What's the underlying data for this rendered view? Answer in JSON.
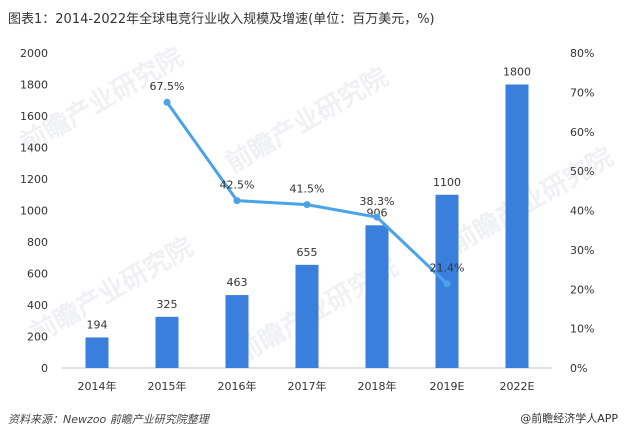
{
  "title": "图表1：2014-2022年全球电竞行业收入规模及增速(单位：百万美元，%)",
  "source": "资料来源：Newzoo 前瞻产业研究院整理",
  "watermark_brand": "@前瞻经济学人APP",
  "watermark_text": "前瞻产业研究院",
  "chart_data": {
    "type": "bar",
    "categories": [
      "2014年",
      "2015年",
      "2016年",
      "2017年",
      "2018年",
      "2019E",
      "2022E"
    ],
    "series": [
      {
        "type": "bar",
        "values": [
          194,
          325,
          463,
          655,
          906,
          1100,
          1800
        ],
        "labels": [
          "194",
          "325",
          "463",
          "655",
          "906",
          "1100",
          "1800"
        ],
        "color": "#3b7fdd",
        "axis": "left"
      },
      {
        "type": "line",
        "values": [
          null,
          67.5,
          42.5,
          41.5,
          38.3,
          21.4,
          null
        ],
        "labels": [
          "",
          "67.5%",
          "42.5%",
          "41.5%",
          "38.3%",
          "21.4%",
          ""
        ],
        "color": "#4aa3e8",
        "axis": "right"
      }
    ],
    "ylim_left": [
      0,
      2000
    ],
    "yticks_left": [
      "0",
      "200",
      "400",
      "600",
      "800",
      "1000",
      "1200",
      "1400",
      "1600",
      "1800",
      "2000"
    ],
    "ylim_right": [
      0,
      80
    ],
    "yticks_right": [
      "0%",
      "10%",
      "20%",
      "30%",
      "40%",
      "50%",
      "60%",
      "70%",
      "80%"
    ],
    "grid": false,
    "legend": "none"
  }
}
